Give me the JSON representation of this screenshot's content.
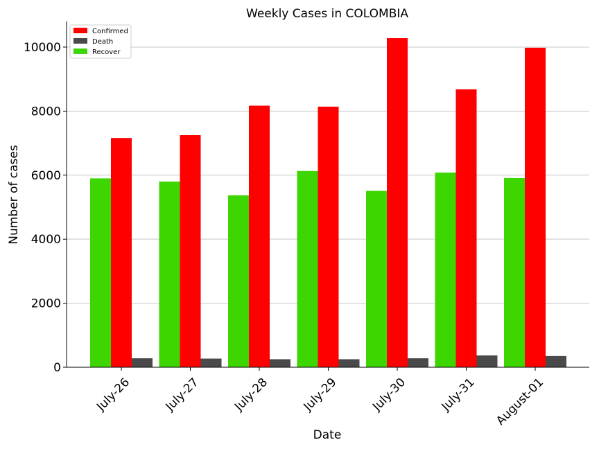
{
  "chart_data": {
    "type": "bar",
    "title": "Weekly Cases in COLOMBIA",
    "xlabel": "Date",
    "ylabel": "Number of cases",
    "categories": [
      "July-26",
      "July-27",
      "July-28",
      "July-29",
      "July-30",
      "July-31",
      "August-01"
    ],
    "ylim": [
      0,
      10800
    ],
    "yticks": [
      "0",
      "2000",
      "4000",
      "6000",
      "8000",
      "10000"
    ],
    "grid": "horizontal",
    "legend_position": "top-left",
    "series": [
      {
        "name": "Recover",
        "color": "#3dd600",
        "values": [
          5900,
          5800,
          5370,
          6130,
          5510,
          6080,
          5910
        ]
      },
      {
        "name": "Confirmed",
        "color": "#ff0000",
        "values": [
          7160,
          7250,
          8170,
          8140,
          10280,
          8680,
          9980
        ]
      },
      {
        "name": "Death",
        "color": "#4a4a4a",
        "values": [
          280,
          270,
          250,
          250,
          280,
          370,
          350
        ]
      }
    ],
    "legend_order": [
      "Confirmed",
      "Death",
      "Recover"
    ]
  }
}
